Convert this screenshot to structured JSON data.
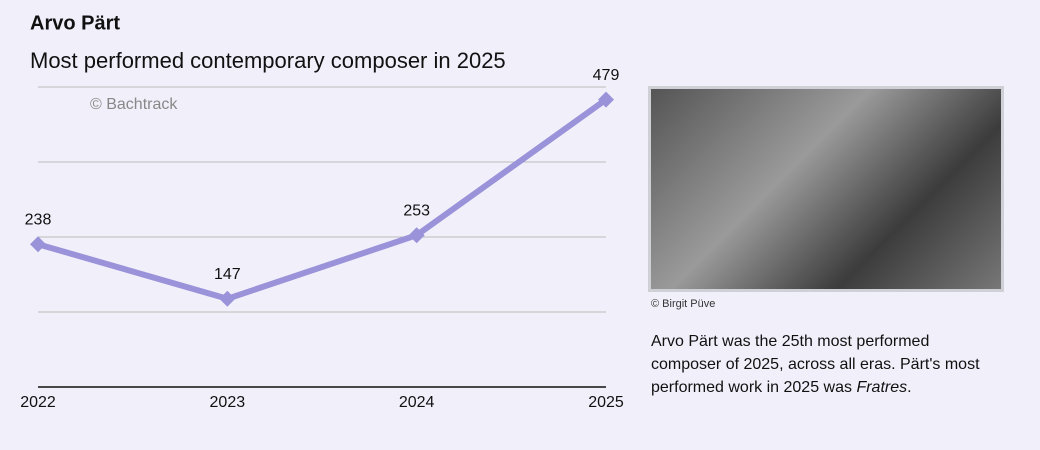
{
  "chart_data": {
    "type": "line",
    "title": "Arvo Pärt",
    "subtitle": "Most performed contemporary composer in 2025",
    "annotation": "© Bachtrack",
    "categories": [
      "2022",
      "2023",
      "2024",
      "2025"
    ],
    "values": [
      238,
      147,
      253,
      479
    ],
    "color": "#9a93da",
    "ylim": [
      0,
      500
    ],
    "yticks": [
      0,
      125,
      250,
      375,
      500
    ],
    "grid": true
  },
  "photo": {
    "credit": "© Birgit Püve",
    "description": [
      "Arvo Pärt was the 25th most performed composer of 2025, across all eras. Pärt's most performed work in 2025 was ",
      "Fratres",
      "."
    ]
  }
}
